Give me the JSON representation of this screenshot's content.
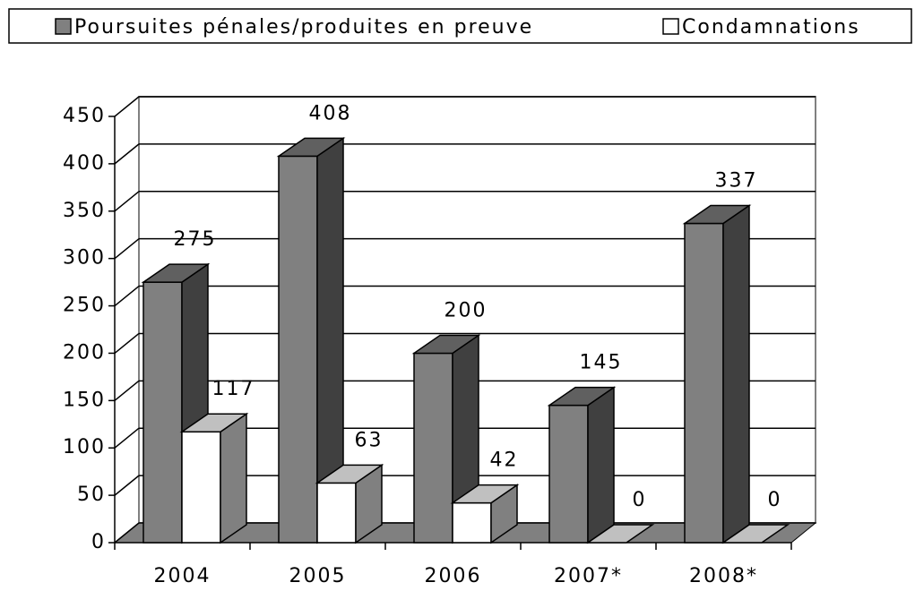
{
  "chart_data": {
    "type": "bar3d",
    "categories": [
      "2004",
      "2005",
      "2006",
      "2007*",
      "2008*"
    ],
    "series": [
      {
        "name": "Poursuites pénales/produites en preuve",
        "color": "#808080",
        "values": [
          275,
          408,
          200,
          145,
          337
        ]
      },
      {
        "name": "Condamnations",
        "color": "#ffffff",
        "values": [
          117,
          63,
          42,
          0,
          0
        ]
      }
    ],
    "ylim": [
      0,
      450
    ],
    "yticks": [
      0,
      50,
      100,
      150,
      200,
      250,
      300,
      350,
      400,
      450
    ],
    "grid": true,
    "legend": "top"
  }
}
